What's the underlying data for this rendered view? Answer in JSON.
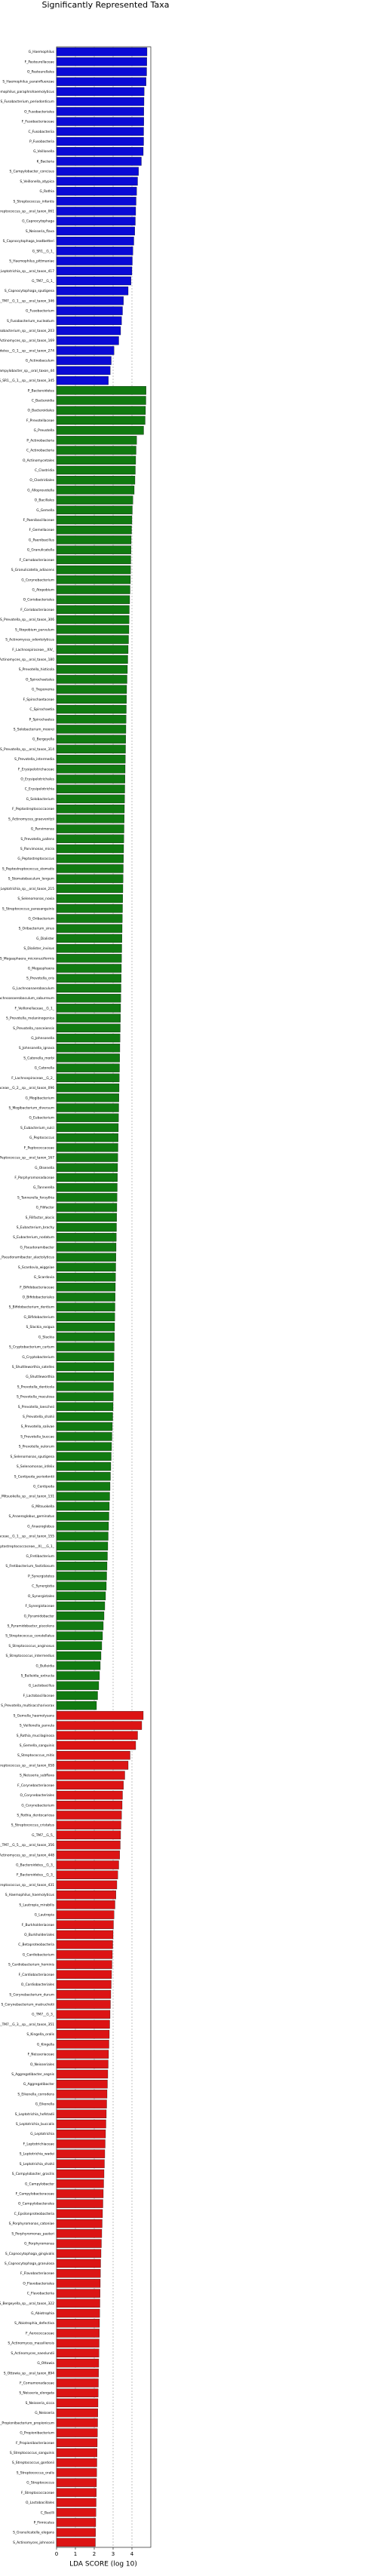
{
  "chart_data": {
    "type": "hbar",
    "title": "Significantly Represented Taxa",
    "xlabel": "LDA SCORE (log 10)",
    "xlim": [
      0,
      5
    ],
    "xticks": [
      0,
      1,
      2,
      3,
      4
    ],
    "grid": true,
    "groups": [
      {
        "color": "#0a0ad6",
        "categories": [
          "G_Haemophilus",
          "F_Pasteurellaceae",
          "O_Pasteurellales",
          "S_Haemophilus_parainfluenzae",
          "S_Haemophilus_paraphrohaemolyticus",
          "S_Fusobacterium_periodonticum",
          "O_Fusobacteriales",
          "F_Fusobacteriaceae",
          "C_Fusobacteriia",
          "P_Fusobacteria",
          "G_Veillonella",
          "K_Bacteria",
          "S_Campylobacter_concisus",
          "S_Veillonella_atypica",
          "G_Rothia",
          "S_Streptococcus_infantis",
          "S_Streptococcus_sp__oral_taxon_061",
          "G_Capnocytophaga",
          "S_Neisseria_flava",
          "S_Capnocytophaga_leadbetteri",
          "G_SR1__G_1_",
          "S_Haemophilus_pittmaniae",
          "S_Leptotrichia_sp__oral_taxon_417",
          "G_TM7__G_1_",
          "S_Capnocytophaga_sputigena",
          "S_TM7__G_1__sp__oral_taxon_346",
          "G_Fusobacterium",
          "S_Fusobacterium_nucleatum",
          "S_Fusobacterium_sp__oral_taxon_203",
          "S_Actinomyces_sp__oral_taxon_169",
          "S_Bacteroidetes__G_1__sp__oral_taxon_274",
          "G_Actinobaculum",
          "S_Campylobacter_sp__oral_taxon_44",
          "S_SR1__G_1__sp__oral_taxon_345"
        ],
        "values": [
          4.8,
          4.79,
          4.78,
          4.75,
          4.65,
          4.64,
          4.63,
          4.63,
          4.62,
          4.62,
          4.6,
          4.5,
          4.35,
          4.3,
          4.25,
          4.22,
          4.2,
          4.18,
          4.15,
          4.1,
          4.05,
          4.02,
          4.0,
          3.95,
          3.8,
          3.55,
          3.5,
          3.45,
          3.4,
          3.3,
          3.05,
          2.9,
          2.85,
          2.75
        ]
      },
      {
        "color": "#117a11",
        "categories": [
          "P_Bacteroidetes",
          "C_Bacteroidia",
          "O_Bacteroidales",
          "F_Prevotellaceae",
          "G_Prevotella",
          "P_Actinobacteria",
          "C_Actinobacteria",
          "O_Actinomycetales",
          "C_Clostridia",
          "O_Clostridiales",
          "G_Alloprevotella",
          "O_Bacillales",
          "G_Gemella",
          "F_Paenibacillaceae",
          "F_Gemellaceae",
          "G_Paenibacillus",
          "G_Granulicatella",
          "F_Carnobacteriaceae",
          "S_Granulicatella_adiacens",
          "G_Corynebacterium",
          "G_Atopobium",
          "O_Coriobacteriales",
          "F_Coriobacteriaceae",
          "S_Prevotella_sp__oral_taxon_306",
          "S_Atopobium_parvulum",
          "S_Actinomyces_odontolyticus",
          "F_Lachnospiraceae__XIV_",
          "S_Actinomyces_sp__oral_taxon_180",
          "S_Prevotella_histicola",
          "O_Spirochaetales",
          "G_Treponema",
          "F_Spirochaetaceae",
          "C_Spirochaetia",
          "P_Spirochaetes",
          "S_Solobacterium_moorei",
          "G_Bergeyella",
          "S_Prevotella_sp__oral_taxon_314",
          "S_Prevotella_intermedia",
          "F_Erysipelotrichaceae",
          "O_Erysipelotrichales",
          "C_Erysipelotrichia",
          "G_Solobacterium",
          "F_Peptostreptococcaceae",
          "S_Actinomyces_graevenitzii",
          "G_Parvimonas",
          "S_Prevotella_pallens",
          "S_Parvimonas_micra",
          "G_Peptostreptococcus",
          "S_Peptostreptococcus_stomatis",
          "S_Stomatobaculum_longum",
          "S_Leptotrichia_sp__oral_taxon_215",
          "S_Selenomonas_noxia",
          "S_Streptococcus_parasanguinis",
          "G_Oribacterium",
          "S_Oribacterium_sinus",
          "G_Dialister",
          "S_Dialister_invisus",
          "S_Megasphaera_micronuciformis",
          "G_Megasphaera",
          "S_Prevotella_oris",
          "G_Lachnoanaerobaculum",
          "S_Lachnoanaerobaculum_saburreum",
          "F_Veillonellaceae__G_1_",
          "S_Prevotella_melaninogenica",
          "S_Prevotella_nanceiensis",
          "G_Johnsonella",
          "S_Johnsonella_ignava",
          "S_Catonella_morbi",
          "G_Catonella",
          "F_Lachnospiraceae__G_2_",
          "S_Lachnospiraceae__G_2__sp__oral_taxon_096",
          "G_Mogibacterium",
          "S_Mogibacterium_diversum",
          "G_Eubacterium",
          "S_Eubacterium_sulci",
          "G_Peptococcus",
          "F_Peptococcaceae",
          "S_Peptococcus_sp__oral_taxon_167",
          "G_Olsenella",
          "F_Porphyromonadaceae",
          "G_Tannerella",
          "S_Tannerella_forsythia",
          "G_Filifactor",
          "S_Filifactor_alocis",
          "S_Eubacterium_brachy",
          "S_Eubacterium_nodatum",
          "G_Pseudoramibacter",
          "S_Pseudoramibacter_alactolyticus",
          "S_Scardovia_wiggsiae",
          "G_Scardovia",
          "F_Bifidobacteriaceae",
          "O_Bifidobacteriales",
          "S_Bifidobacterium_dentium",
          "G_Bifidobacterium",
          "S_Slackia_exigua",
          "G_Slackia",
          "S_Cryptobacterium_curtum",
          "G_Cryptobacterium",
          "S_Shuttleworthia_satelles",
          "G_Shuttleworthia",
          "S_Prevotella_denticola",
          "S_Prevotella_maculosa",
          "S_Prevotella_loescheii",
          "S_Prevotella_shahii",
          "S_Prevotella_salivae",
          "S_Prevotella_buccae",
          "S_Prevotella_oulorum",
          "S_Selenomonas_sputigena",
          "S_Selenomonas_infelix",
          "S_Centipeda_periodontii",
          "G_Centipeda",
          "S_Mitsuokella_sp__oral_taxon_131",
          "G_Mitsuokella",
          "S_Anaeroglobus_geminatus",
          "G_Anaeroglobus",
          "S_Veillonellaceae__G_1__sp__oral_taxon_155",
          "F_Peptostreptococcaceae__XI___G_1_",
          "G_Fretibacterium",
          "S_Fretibacterium_fastidiosum",
          "P_Synergistetes",
          "C_Synergistia",
          "O_Synergistales",
          "F_Synergistaceae",
          "G_Pyramidobacter",
          "S_Pyramidobacter_piscolens",
          "S_Streptococcus_constellatus",
          "S_Streptococcus_anginosus",
          "S_Streptococcus_intermedius",
          "G_Bulleidia",
          "S_Bulleidia_extructa",
          "G_Lactobacillus",
          "F_Lactobacillaceae",
          "S_Prevotella_multisaccharivorax"
        ],
        "values": [
          4.75,
          4.74,
          4.72,
          4.7,
          4.62,
          4.25,
          4.22,
          4.2,
          4.18,
          4.16,
          4.12,
          4.05,
          4.02,
          4.0,
          3.98,
          3.96,
          3.95,
          3.94,
          3.93,
          3.92,
          3.9,
          3.88,
          3.86,
          3.85,
          3.84,
          3.82,
          3.8,
          3.78,
          3.76,
          3.74,
          3.72,
          3.71,
          3.7,
          3.69,
          3.68,
          3.67,
          3.66,
          3.65,
          3.64,
          3.63,
          3.62,
          3.61,
          3.6,
          3.59,
          3.58,
          3.57,
          3.56,
          3.55,
          3.54,
          3.53,
          3.52,
          3.51,
          3.5,
          3.49,
          3.48,
          3.47,
          3.46,
          3.45,
          3.44,
          3.43,
          3.42,
          3.41,
          3.4,
          3.39,
          3.38,
          3.37,
          3.36,
          3.35,
          3.34,
          3.33,
          3.32,
          3.31,
          3.3,
          3.29,
          3.28,
          3.27,
          3.26,
          3.25,
          3.24,
          3.23,
          3.22,
          3.21,
          3.2,
          3.19,
          3.18,
          3.17,
          3.16,
          3.15,
          3.14,
          3.13,
          3.12,
          3.11,
          3.1,
          3.09,
          3.08,
          3.07,
          3.06,
          3.05,
          3.04,
          3.03,
          3.02,
          3.01,
          3.0,
          2.98,
          2.96,
          2.94,
          2.92,
          2.9,
          2.88,
          2.86,
          2.84,
          2.82,
          2.8,
          2.78,
          2.76,
          2.74,
          2.72,
          2.7,
          2.68,
          2.66,
          2.64,
          2.6,
          2.56,
          2.52,
          2.48,
          2.44,
          2.4,
          2.36,
          2.32,
          2.28,
          2.24,
          2.18,
          2.12
        ]
      },
      {
        "color": "#dc1414",
        "categories": [
          "S_Gemella_haemolysans",
          "S_Veillonella_parvula",
          "S_Rothia_mucilaginosa",
          "S_Gemella_sanguinis",
          "S_Streptococcus_mitis",
          "S_Streptococcus_sp__oral_taxon_058",
          "S_Neisseria_subflava",
          "F_Corynebacteriaceae",
          "O_Corynebacteriales",
          "G_Corynebacterium",
          "S_Rothia_dentocariosa",
          "S_Streptococcus_cristatus",
          "G_TM7__G_5_",
          "S_TM7__G_5__sp__oral_taxon_356",
          "S_Actinomyces_sp__oral_taxon_448",
          "G_Bacteroidetes__G_3_",
          "F_Bacteroidetes__G_3_",
          "S_Streptococcus_sp__oral_taxon_431",
          "S_Haemophilus_haemolyticus",
          "S_Lautropia_mirabilis",
          "G_Lautropia",
          "F_Burkholderiaceae",
          "O_Burkholderiales",
          "C_Betaproteobacteria",
          "G_Cardiobacterium",
          "S_Cardiobacterium_hominis",
          "F_Cardiobacteriaceae",
          "O_Cardiobacteriales",
          "S_Corynebacterium_durum",
          "S_Corynebacterium_matruchotii",
          "G_TM7__G_3_",
          "S_TM7__G_3__sp__oral_taxon_351",
          "S_Kingella_oralis",
          "G_Kingella",
          "F_Neisseriaceae",
          "O_Neisseriales",
          "S_Aggregatibacter_segnis",
          "G_Aggregatibacter",
          "S_Eikenella_corrodens",
          "G_Eikenella",
          "S_Leptotrichia_hofstadii",
          "S_Leptotrichia_buccalis",
          "G_Leptotrichia",
          "F_Leptotrichiaceae",
          "S_Leptotrichia_wadei",
          "S_Leptotrichia_shahii",
          "S_Campylobacter_gracilis",
          "G_Campylobacter",
          "F_Campylobacteraceae",
          "O_Campylobacterales",
          "C_Epsilonproteobacteria",
          "S_Porphyromonas_catoniae",
          "S_Porphyromonas_pasteri",
          "G_Porphyromonas",
          "S_Capnocytophaga_gingivalis",
          "S_Capnocytophaga_granulosa",
          "F_Flavobacteriaceae",
          "O_Flavobacteriales",
          "C_Flavobacteriia",
          "S_Bergeyella_sp__oral_taxon_322",
          "G_Abiotrophia",
          "S_Abiotrophia_defectiva",
          "F_Aerococcaceae",
          "S_Actinomyces_massiliensis",
          "S_Actinomyces_naeslundii",
          "G_Ottowia",
          "S_Ottowia_sp__oral_taxon_894",
          "F_Comamonadaceae",
          "S_Neisseria_elongata",
          "S_Neisseria_sicca",
          "G_Neisseria",
          "S_Propionibacterium_propionicum",
          "G_Propionibacterium",
          "F_Propionibacteriaceae",
          "S_Streptococcus_sanguinis",
          "S_Streptococcus_gordonii",
          "S_Streptococcus_oralis",
          "G_Streptococcus",
          "F_Streptococcaceae",
          "O_Lactobacillales",
          "C_Bacilli",
          "P_Firmicutes",
          "S_Granulicatella_elegans",
          "S_Actinomyces_johnsonii"
        ],
        "values": [
          4.6,
          4.52,
          4.3,
          4.2,
          3.9,
          3.8,
          3.62,
          3.55,
          3.5,
          3.48,
          3.45,
          3.42,
          3.4,
          3.38,
          3.35,
          3.3,
          3.25,
          3.2,
          3.15,
          3.1,
          3.05,
          3.02,
          3.0,
          2.98,
          2.96,
          2.94,
          2.92,
          2.9,
          2.88,
          2.86,
          2.84,
          2.82,
          2.8,
          2.78,
          2.76,
          2.74,
          2.72,
          2.7,
          2.68,
          2.66,
          2.64,
          2.62,
          2.6,
          2.58,
          2.56,
          2.54,
          2.52,
          2.5,
          2.48,
          2.46,
          2.44,
          2.42,
          2.4,
          2.38,
          2.36,
          2.34,
          2.33,
          2.32,
          2.31,
          2.3,
          2.29,
          2.28,
          2.27,
          2.26,
          2.25,
          2.24,
          2.23,
          2.22,
          2.21,
          2.2,
          2.19,
          2.18,
          2.17,
          2.16,
          2.15,
          2.14,
          2.13,
          2.12,
          2.11,
          2.1,
          2.09,
          2.08,
          2.07,
          2.06
        ]
      }
    ]
  }
}
